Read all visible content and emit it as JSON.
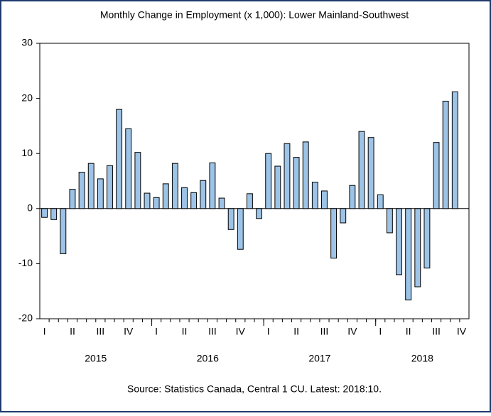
{
  "chart_data": {
    "type": "bar",
    "title": "Monthly Change in Employment (x 1,000): Lower Mainland-Southwest",
    "source": "Source: Statistics Canada, Central 1 CU. Latest: 2018:10.",
    "categories": [
      "I",
      null,
      null,
      "II",
      null,
      null,
      "III",
      null,
      null,
      "IV",
      null,
      null,
      "I",
      null,
      null,
      "II",
      null,
      null,
      "III",
      null,
      null,
      "IV",
      null,
      null,
      "I",
      null,
      null,
      "II",
      null,
      null,
      "III",
      null,
      null,
      "IV",
      null,
      null,
      "I",
      null,
      null,
      "II",
      null,
      null,
      "III",
      null,
      null
    ],
    "year_labels": [
      "2015",
      "2016",
      "2017",
      "2018"
    ],
    "last_quarter_label": "IV",
    "values": [
      -1.6,
      -2.0,
      -8.2,
      3.5,
      6.6,
      8.2,
      5.4,
      7.8,
      18.0,
      14.5,
      10.2,
      2.8,
      2.0,
      4.5,
      8.2,
      3.8,
      2.9,
      5.1,
      8.3,
      1.9,
      -3.8,
      -7.4,
      2.7,
      -1.8,
      10.0,
      7.7,
      11.8,
      9.3,
      12.1,
      4.8,
      3.2,
      -9.0,
      -2.6,
      4.2,
      14.0,
      12.9,
      2.5,
      -4.4,
      -12.0,
      -16.6,
      -14.2,
      -10.8,
      12.0,
      19.5,
      21.2
    ],
    "color": "#9dc3e6",
    "ylim": [
      -20,
      30
    ],
    "yticks": [
      -20,
      -10,
      0,
      10,
      20,
      30
    ]
  }
}
